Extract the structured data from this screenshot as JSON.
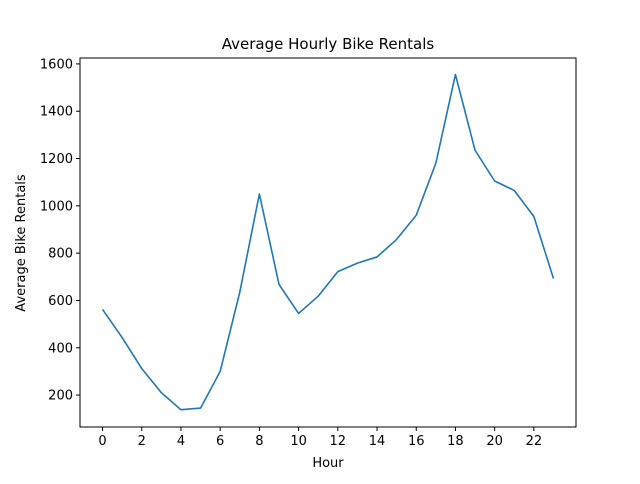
{
  "chart_data": {
    "type": "line",
    "title": "Average Hourly Bike Rentals",
    "xlabel": "Hour",
    "ylabel": "Average Bike Rentals",
    "xlim": [
      -1.15,
      24.15
    ],
    "ylim": [
      65,
      1625
    ],
    "xticks": [
      0,
      2,
      4,
      6,
      8,
      10,
      12,
      14,
      16,
      18,
      20,
      22
    ],
    "yticks": [
      200,
      400,
      600,
      800,
      1000,
      1200,
      1400,
      1600
    ],
    "grid": false,
    "line_color": "#1f77b4",
    "series": [
      {
        "x": [
          0,
          1,
          2,
          3,
          4,
          5,
          6,
          7,
          8,
          9,
          10,
          11,
          12,
          13,
          14,
          15,
          16,
          17,
          18,
          19,
          20,
          21,
          22,
          23
        ],
        "values": [
          562,
          443,
          312,
          210,
          138,
          145,
          300,
          635,
          1050,
          668,
          545,
          618,
          722,
          758,
          784,
          858,
          960,
          1180,
          1555,
          1235,
          1105,
          1065,
          955,
          693
        ]
      }
    ]
  }
}
